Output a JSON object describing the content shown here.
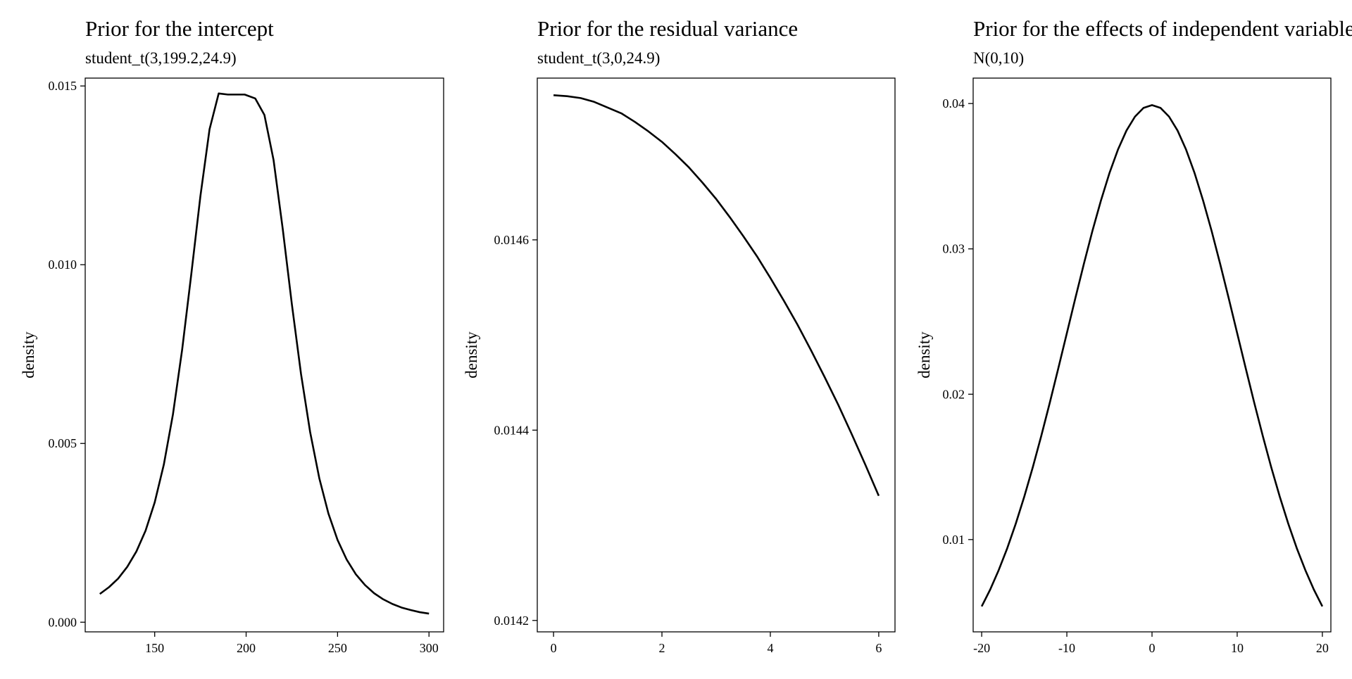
{
  "chart_data": [
    {
      "type": "line",
      "title": "Prior for the intercept",
      "subtitle": "student_t(3,199.2,24.9)",
      "xlabel": "",
      "ylabel": "density",
      "xlim": [
        112,
        308
      ],
      "ylim": [
        -0.00027,
        0.01522
      ],
      "xticks": [
        150,
        200,
        250,
        300
      ],
      "xtick_labels": [
        "150",
        "200",
        "250",
        "300"
      ],
      "yticks": [
        0,
        0.005,
        0.01,
        0.015
      ],
      "ytick_labels": [
        "0.000",
        "0.005",
        "0.010",
        "0.015"
      ],
      "grid": false,
      "legend": "none",
      "x": [
        120,
        125,
        130,
        135,
        140,
        145,
        150,
        155,
        160,
        165,
        170,
        175,
        180,
        185,
        190,
        195,
        199.2,
        205,
        210,
        215,
        220,
        225,
        230,
        235,
        240,
        245,
        250,
        255,
        260,
        265,
        270,
        275,
        280,
        285,
        290,
        295,
        300
      ],
      "series": [
        {
          "values": [
            0.00079,
            0.00098,
            0.00122,
            0.00155,
            0.00198,
            0.00256,
            0.00335,
            0.00441,
            0.00582,
            0.00762,
            0.00973,
            0.01192,
            0.01379,
            0.01479,
            0.01476,
            0.01476,
            0.01476,
            0.01465,
            0.01419,
            0.01293,
            0.01101,
            0.0089,
            0.00695,
            0.00532,
            0.00403,
            0.00304,
            0.0023,
            0.00175,
            0.00134,
            0.00104,
            0.00081,
            0.00064,
            0.00051,
            0.00041,
            0.00034,
            0.00028,
            0.00024
          ]
        }
      ]
    },
    {
      "type": "line",
      "title": "Prior for the residual variance",
      "subtitle": "student_t(3,0,24.9)",
      "xlabel": "",
      "ylabel": "density",
      "xlim": [
        -0.3,
        6.3
      ],
      "ylim": [
        0.014188,
        0.01477
      ],
      "xticks": [
        0,
        2,
        4,
        6
      ],
      "xtick_labels": [
        "0",
        "2",
        "4",
        "6"
      ],
      "yticks": [
        0.0142,
        0.0144,
        0.0146
      ],
      "ytick_labels": [
        "0.0142",
        "0.0144",
        "0.0146"
      ],
      "grid": false,
      "legend": "none",
      "x": [
        0,
        0.25,
        0.5,
        0.75,
        1,
        1.25,
        1.5,
        1.75,
        2,
        2.25,
        2.5,
        2.75,
        3,
        3.25,
        3.5,
        3.75,
        4,
        4.25,
        4.5,
        4.75,
        5,
        5.25,
        5.5,
        5.75,
        6
      ],
      "series": [
        {
          "values": [
            0.014752,
            0.014751,
            0.014749,
            0.014745,
            0.014739,
            0.014733,
            0.014724,
            0.014714,
            0.014703,
            0.01469,
            0.014676,
            0.01466,
            0.014643,
            0.014624,
            0.014604,
            0.014583,
            0.01456,
            0.014536,
            0.014511,
            0.014484,
            0.014456,
            0.014427,
            0.014396,
            0.014364,
            0.014331
          ]
        }
      ]
    },
    {
      "type": "line",
      "title": "Prior for the effects of independent variables",
      "subtitle": "N(0,10)",
      "xlabel": "",
      "ylabel": "density",
      "xlim": [
        -21,
        21
      ],
      "ylim": [
        0.00365,
        0.04175
      ],
      "xticks": [
        -20,
        -10,
        0,
        10,
        20
      ],
      "xtick_labels": [
        "-20",
        "-10",
        "0",
        "10",
        "20"
      ],
      "yticks": [
        0.01,
        0.02,
        0.03,
        0.04
      ],
      "ytick_labels": [
        "0.01",
        "0.02",
        "0.03",
        "0.04"
      ],
      "grid": false,
      "legend": "none",
      "x": [
        -20,
        -19,
        -18,
        -17,
        -16,
        -15,
        -14,
        -13,
        -12,
        -11,
        -10,
        -9,
        -8,
        -7,
        -6,
        -5,
        -4,
        -3,
        -2,
        -1,
        0,
        1,
        2,
        3,
        4,
        5,
        6,
        7,
        8,
        9,
        10,
        11,
        12,
        13,
        14,
        15,
        16,
        17,
        18,
        19,
        20
      ],
      "series": [
        {
          "values": [
            0.0054,
            0.00656,
            0.0079,
            0.0094,
            0.01109,
            0.01295,
            0.01497,
            0.01714,
            0.01942,
            0.02179,
            0.0242,
            0.02661,
            0.02897,
            0.03123,
            0.03332,
            0.03521,
            0.03683,
            0.03814,
            0.0391,
            0.0397,
            0.03989,
            0.0397,
            0.0391,
            0.03814,
            0.03683,
            0.03521,
            0.03332,
            0.03123,
            0.02897,
            0.02661,
            0.0242,
            0.02179,
            0.01942,
            0.01714,
            0.01497,
            0.01295,
            0.01109,
            0.0094,
            0.0079,
            0.00656,
            0.0054
          ]
        }
      ]
    }
  ]
}
